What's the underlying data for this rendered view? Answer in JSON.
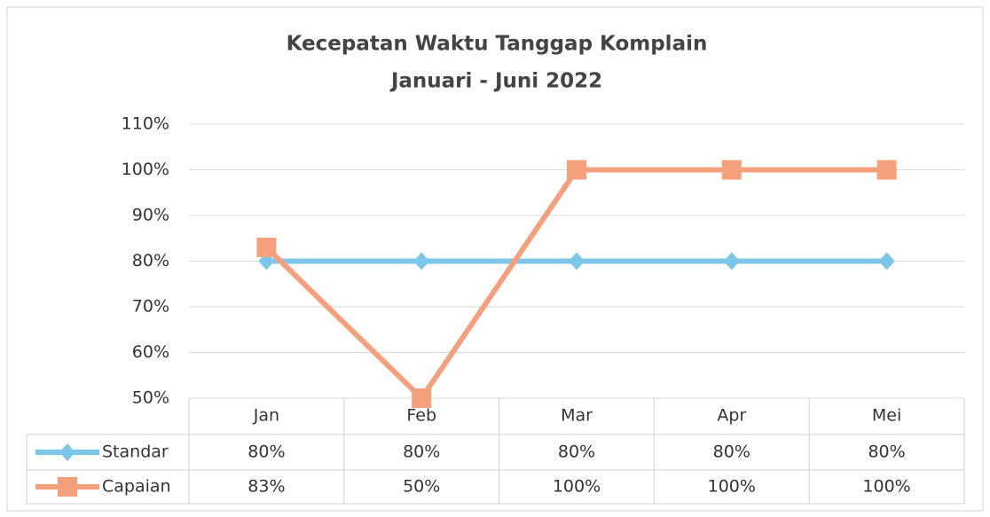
{
  "chart_data": {
    "type": "line",
    "title": "Kecepatan Waktu Tanggap Komplain",
    "subtitle": "Januari - Juni 2022",
    "categories": [
      "Jan",
      "Feb",
      "Mar",
      "Apr",
      "Mei"
    ],
    "series": [
      {
        "name": "Standar",
        "color": "#7cc6ea",
        "marker": "diamond",
        "values": [
          80,
          80,
          80,
          80,
          80
        ],
        "value_labels": [
          "80%",
          "80%",
          "80%",
          "80%",
          "80%"
        ]
      },
      {
        "name": "Capaian",
        "color": "#f5a07c",
        "marker": "square",
        "values": [
          83,
          50,
          100,
          100,
          100
        ],
        "value_labels": [
          "83%",
          "50%",
          "100%",
          "100%",
          "100%"
        ]
      }
    ],
    "ylim": [
      50,
      110
    ],
    "yticks": [
      {
        "value": 50,
        "label": "50%"
      },
      {
        "value": 60,
        "label": "60%"
      },
      {
        "value": 70,
        "label": "70%"
      },
      {
        "value": 80,
        "label": "80%"
      },
      {
        "value": 90,
        "label": "90%"
      },
      {
        "value": 100,
        "label": "100%"
      },
      {
        "value": 110,
        "label": "110%"
      }
    ],
    "grid": true
  }
}
